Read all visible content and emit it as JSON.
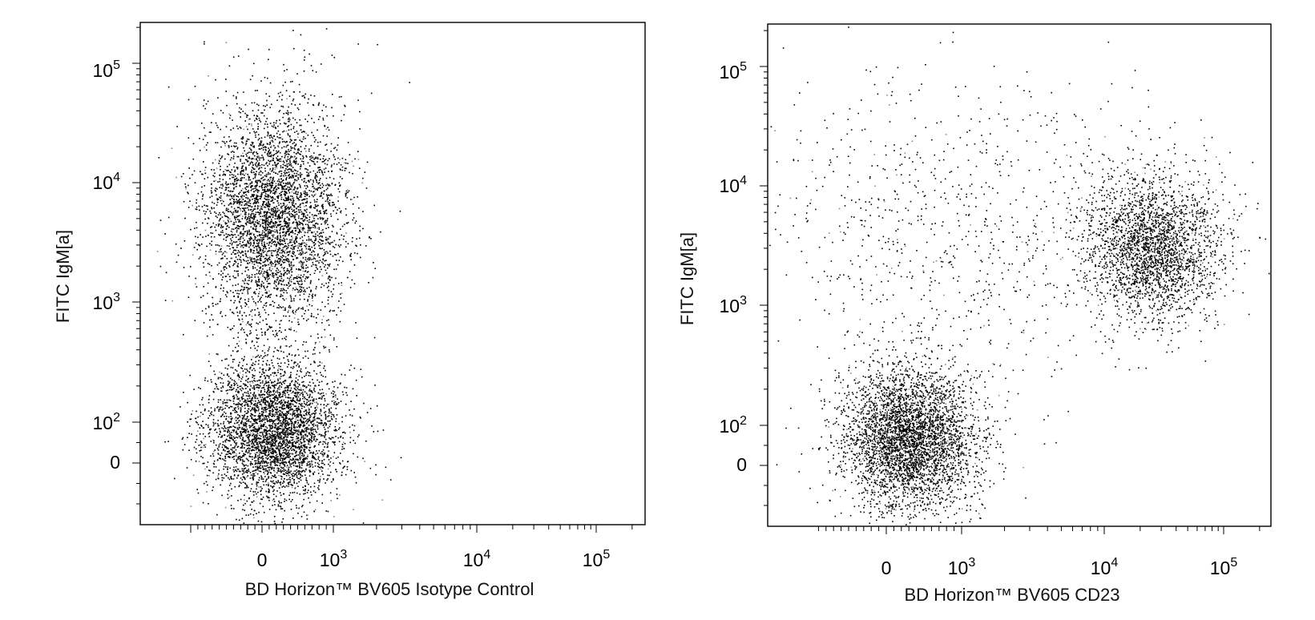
{
  "chart_data": [
    {
      "type": "scatter",
      "title": "",
      "xlabel": "BD Horizon™ BV605 Isotype Control",
      "ylabel": "FITC IgM[a]",
      "xscale": "biexponential",
      "yscale": "biexponential",
      "x_ticks": [
        {
          "base": "0",
          "exp": ""
        },
        {
          "base": "10",
          "exp": "3"
        },
        {
          "base": "10",
          "exp": "4"
        },
        {
          "base": "10",
          "exp": "5"
        }
      ],
      "y_ticks": [
        {
          "base": "0",
          "exp": ""
        },
        {
          "base": "10",
          "exp": "2"
        },
        {
          "base": "10",
          "exp": "3"
        },
        {
          "base": "10",
          "exp": "4"
        },
        {
          "base": "10",
          "exp": "5"
        }
      ],
      "grid": false,
      "point_color": "#000000",
      "populations": [
        {
          "x_center": 150,
          "y_center": 5000,
          "count": 4200
        },
        {
          "x_center": 150,
          "y_center": 80,
          "count": 3800
        }
      ]
    },
    {
      "type": "scatter",
      "title": "",
      "xlabel": "BD Horizon™ BV605 CD23",
      "ylabel": "FITC IgM[a]",
      "xscale": "biexponential",
      "yscale": "biexponential",
      "x_ticks": [
        {
          "base": "0",
          "exp": ""
        },
        {
          "base": "10",
          "exp": "3"
        },
        {
          "base": "10",
          "exp": "4"
        },
        {
          "base": "10",
          "exp": "5"
        }
      ],
      "y_ticks": [
        {
          "base": "0",
          "exp": ""
        },
        {
          "base": "10",
          "exp": "2"
        },
        {
          "base": "10",
          "exp": "3"
        },
        {
          "base": "10",
          "exp": "4"
        },
        {
          "base": "10",
          "exp": "5"
        }
      ],
      "grid": false,
      "point_color": "#000000",
      "populations": [
        {
          "x_center": 300,
          "y_center": 70,
          "count": 4000
        },
        {
          "x_center": 25000,
          "y_center": 3000,
          "count": 2600
        },
        {
          "x_center": 1000,
          "y_center": 5000,
          "count": 900
        }
      ]
    }
  ]
}
